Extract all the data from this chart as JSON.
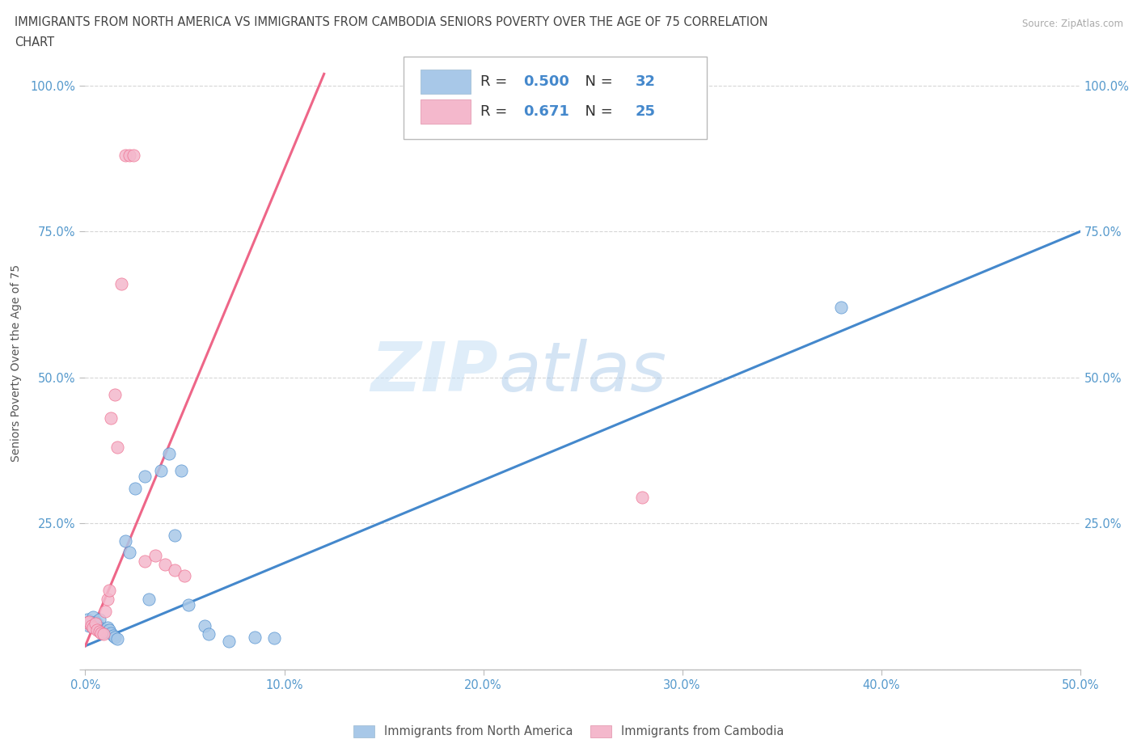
{
  "title_line1": "IMMIGRANTS FROM NORTH AMERICA VS IMMIGRANTS FROM CAMBODIA SENIORS POVERTY OVER THE AGE OF 75 CORRELATION",
  "title_line2": "CHART",
  "source": "Source: ZipAtlas.com",
  "ylabel": "Seniors Poverty Over the Age of 75",
  "xlim": [
    0.0,
    0.5
  ],
  "ylim": [
    0.0,
    1.05
  ],
  "xtick_vals": [
    0.0,
    0.1,
    0.2,
    0.3,
    0.4,
    0.5
  ],
  "ytick_vals": [
    0.0,
    0.25,
    0.5,
    0.75,
    1.0
  ],
  "xticklabels": [
    "0.0%",
    "10.0%",
    "20.0%",
    "30.0%",
    "40.0%",
    "50.0%"
  ],
  "yticklabels": [
    "",
    "25.0%",
    "50.0%",
    "75.0%",
    "100.0%"
  ],
  "r_blue": 0.5,
  "n_blue": 32,
  "r_pink": 0.671,
  "n_pink": 25,
  "watermark_zip": "ZIP",
  "watermark_atlas": "atlas",
  "blue_color": "#a8c8e8",
  "pink_color": "#f4b8cc",
  "blue_line_color": "#4488cc",
  "pink_line_color": "#ee6688",
  "blue_scatter": [
    [
      0.001,
      0.085
    ],
    [
      0.002,
      0.075
    ],
    [
      0.003,
      0.08
    ],
    [
      0.004,
      0.09
    ],
    [
      0.005,
      0.082
    ],
    [
      0.006,
      0.078
    ],
    [
      0.007,
      0.085
    ],
    [
      0.008,
      0.07
    ],
    [
      0.009,
      0.068
    ],
    [
      0.01,
      0.065
    ],
    [
      0.011,
      0.072
    ],
    [
      0.012,
      0.068
    ],
    [
      0.013,
      0.062
    ],
    [
      0.014,
      0.058
    ],
    [
      0.015,
      0.055
    ],
    [
      0.016,
      0.052
    ],
    [
      0.02,
      0.22
    ],
    [
      0.022,
      0.2
    ],
    [
      0.025,
      0.31
    ],
    [
      0.03,
      0.33
    ],
    [
      0.032,
      0.12
    ],
    [
      0.038,
      0.34
    ],
    [
      0.042,
      0.37
    ],
    [
      0.045,
      0.23
    ],
    [
      0.048,
      0.34
    ],
    [
      0.052,
      0.11
    ],
    [
      0.06,
      0.075
    ],
    [
      0.062,
      0.06
    ],
    [
      0.072,
      0.048
    ],
    [
      0.085,
      0.055
    ],
    [
      0.095,
      0.053
    ],
    [
      0.38,
      0.62
    ]
  ],
  "pink_scatter": [
    [
      0.001,
      0.08
    ],
    [
      0.002,
      0.082
    ],
    [
      0.003,
      0.075
    ],
    [
      0.004,
      0.072
    ],
    [
      0.005,
      0.078
    ],
    [
      0.006,
      0.068
    ],
    [
      0.007,
      0.065
    ],
    [
      0.008,
      0.062
    ],
    [
      0.009,
      0.06
    ],
    [
      0.01,
      0.1
    ],
    [
      0.011,
      0.12
    ],
    [
      0.012,
      0.135
    ],
    [
      0.013,
      0.43
    ],
    [
      0.015,
      0.47
    ],
    [
      0.016,
      0.38
    ],
    [
      0.018,
      0.66
    ],
    [
      0.02,
      0.88
    ],
    [
      0.022,
      0.88
    ],
    [
      0.024,
      0.88
    ],
    [
      0.03,
      0.185
    ],
    [
      0.035,
      0.195
    ],
    [
      0.04,
      0.18
    ],
    [
      0.045,
      0.17
    ],
    [
      0.05,
      0.16
    ],
    [
      0.28,
      0.295
    ]
  ],
  "blue_line_x": [
    0.0,
    0.5
  ],
  "blue_line_y": [
    0.04,
    0.75
  ],
  "pink_line_x": [
    0.0,
    0.12
  ],
  "pink_line_y": [
    0.04,
    1.02
  ]
}
